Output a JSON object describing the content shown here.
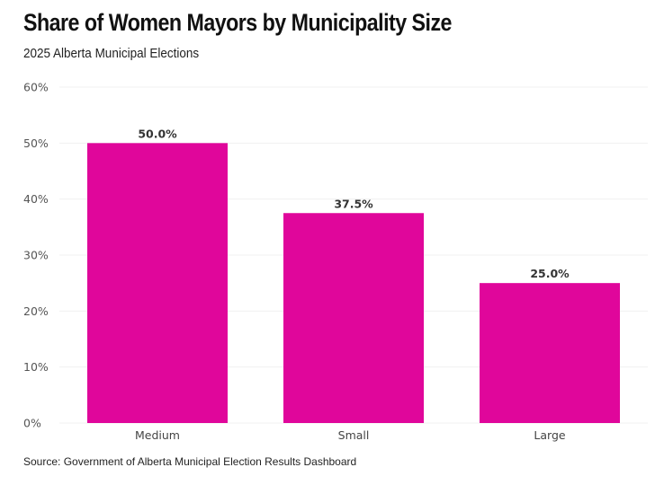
{
  "chart_data": {
    "type": "bar",
    "title": "Share of Women Mayors by Municipality Size",
    "subtitle": "2025 Alberta Municipal Elections",
    "categories": [
      "Medium",
      "Small",
      "Large"
    ],
    "values": [
      50.0,
      37.5,
      25.0
    ],
    "data_labels": [
      "50.0%",
      "37.5%",
      "25.0%"
    ],
    "xlabel": "",
    "ylabel": "",
    "ylim": [
      0,
      60
    ],
    "yticks": [
      0,
      10,
      20,
      30,
      40,
      50,
      60
    ],
    "ytick_labels": [
      "0%",
      "10%",
      "20%",
      "30%",
      "40%",
      "50%",
      "60%"
    ],
    "grid": true,
    "legend": "none",
    "bar_color": "#E0069B",
    "source": "Source: Government of Alberta Municipal Election Results Dashboard"
  }
}
